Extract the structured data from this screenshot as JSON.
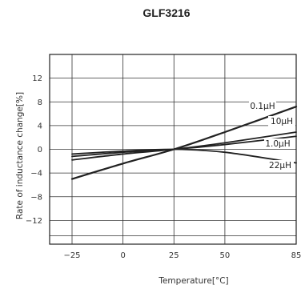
{
  "chart_data": {
    "type": "line",
    "title": "GLF3216",
    "xlabel": "Temperature[°C]",
    "ylabel": "Rate of inductance change[%]",
    "x_ticks": [
      -25,
      0,
      25,
      50,
      85
    ],
    "y_ticks": [
      12,
      8,
      4,
      0,
      -4,
      -8,
      -12
    ],
    "x_tick_labels": [
      "−25",
      "0",
      "25",
      "50",
      "85"
    ],
    "y_tick_labels": [
      "12",
      "8",
      "4",
      "0",
      "−4",
      "−8",
      "−12"
    ],
    "xlim": [
      -36,
      85
    ],
    "ylim": [
      -16,
      16
    ],
    "grid": true,
    "series": [
      {
        "name": "0.1μH",
        "x": [
          -25,
          0,
          25,
          50,
          85
        ],
        "y": [
          -5.0,
          -2.4,
          0,
          2.9,
          7.2
        ],
        "width": 2.2
      },
      {
        "name": "10μH",
        "x": [
          -25,
          0,
          25,
          50,
          85
        ],
        "y": [
          -1.8,
          -0.8,
          0,
          1.1,
          2.9
        ],
        "width": 1.8
      },
      {
        "name": "1.0μH",
        "x": [
          -25,
          0,
          25,
          50,
          85
        ],
        "y": [
          -1.2,
          -0.5,
          0,
          0.8,
          2.2
        ],
        "width": 1.8
      },
      {
        "name": "22μH",
        "x": [
          -25,
          0,
          25,
          50,
          85
        ],
        "y": [
          -0.8,
          -0.3,
          0,
          -0.5,
          -2.3
        ],
        "width": 1.8
      }
    ]
  }
}
